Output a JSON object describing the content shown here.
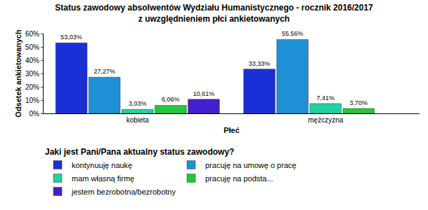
{
  "chart_data": {
    "type": "bar",
    "title": "Status zawodowy absolwentów Wydziału Humanistycznego - rocznik 2016/2017\nz uwzględnieniem płci ankietowanych",
    "x_label": "Płeć",
    "y_label": "Odsetek ankietowanych",
    "legend_title": "Jaki jest Pani/Pana aktualny status zawodowy?",
    "legend": "bottom",
    "grid": false,
    "data_labels": true,
    "categories": [
      "kobieta",
      "mężczyzna"
    ],
    "series": [
      {
        "name": "kontynuuję naukę",
        "color": "#1b2fd6",
        "values": [
          53.03,
          33.33
        ],
        "value_labels": [
          "53,03%",
          "33,33%"
        ]
      },
      {
        "name": "pracuję na umowę o pracę",
        "color": "#1e90d6",
        "values": [
          27.27,
          55.56
        ],
        "value_labels": [
          "27,27%",
          "55,56%"
        ]
      },
      {
        "name": "mam własną firmę",
        "color": "#20d2a0",
        "values": [
          3.03,
          7.41
        ],
        "value_labels": [
          "3,03%",
          "7,41%"
        ]
      },
      {
        "name": "pracuję na podsta...",
        "color": "#22c83a",
        "values": [
          6.06,
          3.7
        ],
        "value_labels": [
          "6,06%",
          "3,70%"
        ]
      },
      {
        "name": "jestem bezrobotna/bezrobotny",
        "color": "#4420cc",
        "values": [
          10.61,
          null
        ],
        "value_labels": [
          "10,61%",
          null
        ]
      }
    ],
    "ylim": [
      0,
      60
    ],
    "yticks": [
      {
        "value": 0,
        "label": "0%"
      },
      {
        "value": 10,
        "label": "10%"
      },
      {
        "value": 20,
        "label": "20%"
      },
      {
        "value": 30,
        "label": "30%"
      },
      {
        "value": 40,
        "label": "40%"
      },
      {
        "value": 50,
        "label": "50%"
      },
      {
        "value": 60,
        "label": "60%"
      }
    ]
  }
}
